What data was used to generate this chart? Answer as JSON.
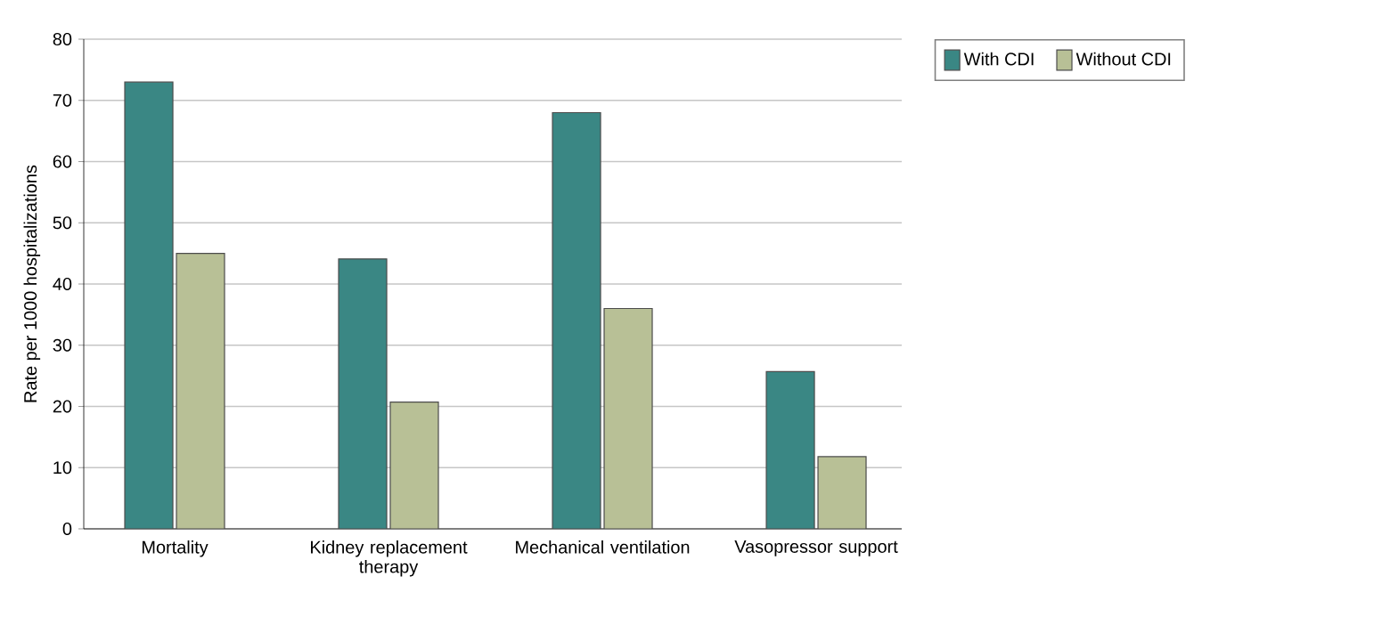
{
  "chart_data": {
    "type": "bar",
    "ylabel": "Rate per 1000 hospitalizations",
    "categories": [
      "Mortality",
      "Kidney replacement therapy",
      "Mechanical ventilation",
      "Vasopressor support"
    ],
    "series": [
      {
        "name": "With CDI",
        "color": "#3a8784",
        "values": [
          73,
          44.1,
          68,
          25.7
        ]
      },
      {
        "name": "Without CDI",
        "color": "#b8c096",
        "values": [
          45,
          20.7,
          36,
          11.8
        ]
      }
    ],
    "ylim": [
      0,
      80
    ],
    "yticks": [
      0,
      10,
      20,
      30,
      40,
      50,
      60,
      70,
      80
    ],
    "grid": "y",
    "legend": "top right"
  }
}
